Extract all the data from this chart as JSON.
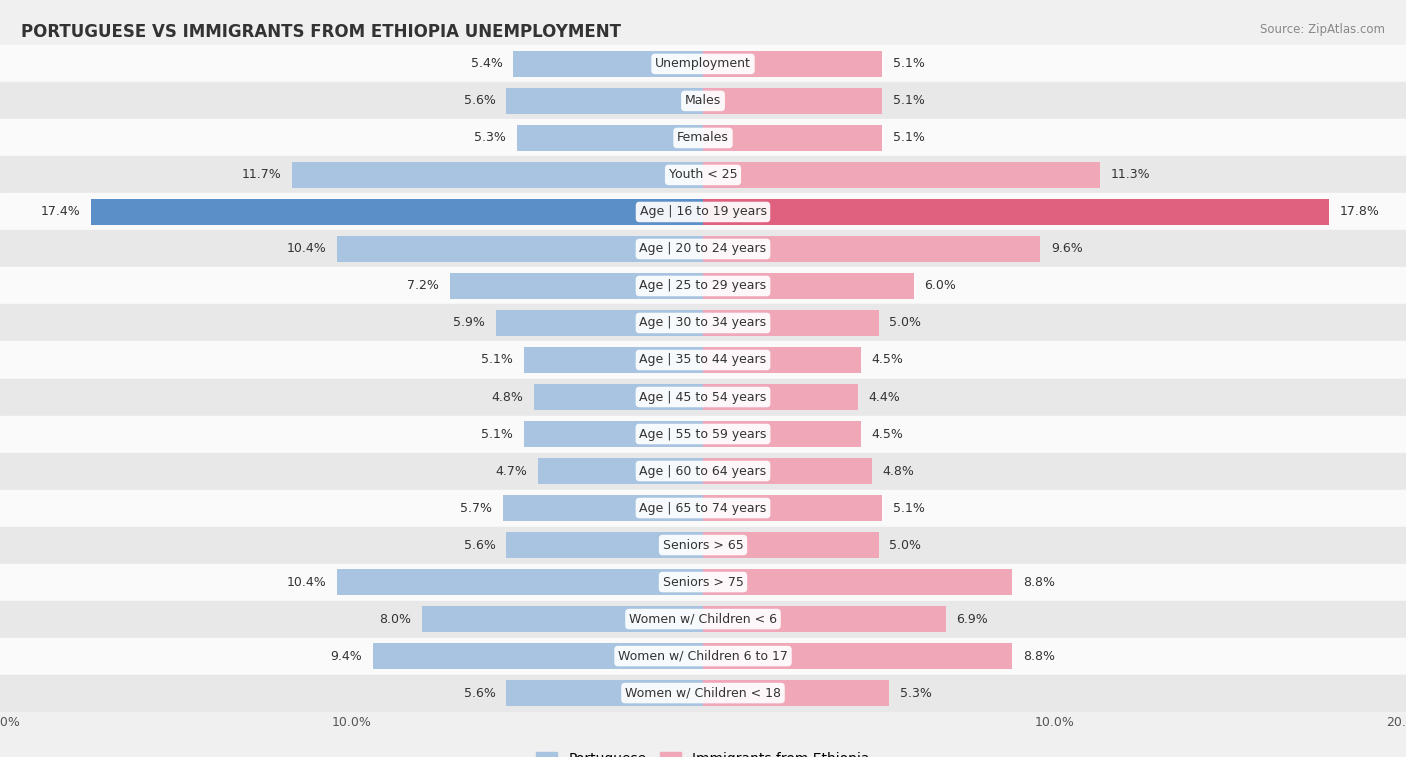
{
  "title": "PORTUGUESE VS IMMIGRANTS FROM ETHIOPIA UNEMPLOYMENT",
  "source": "Source: ZipAtlas.com",
  "categories": [
    "Unemployment",
    "Males",
    "Females",
    "Youth < 25",
    "Age | 16 to 19 years",
    "Age | 20 to 24 years",
    "Age | 25 to 29 years",
    "Age | 30 to 34 years",
    "Age | 35 to 44 years",
    "Age | 45 to 54 years",
    "Age | 55 to 59 years",
    "Age | 60 to 64 years",
    "Age | 65 to 74 years",
    "Seniors > 65",
    "Seniors > 75",
    "Women w/ Children < 6",
    "Women w/ Children 6 to 17",
    "Women w/ Children < 18"
  ],
  "portuguese": [
    5.4,
    5.6,
    5.3,
    11.7,
    17.4,
    10.4,
    7.2,
    5.9,
    5.1,
    4.8,
    5.1,
    4.7,
    5.7,
    5.6,
    10.4,
    8.0,
    9.4,
    5.6
  ],
  "ethiopia": [
    5.1,
    5.1,
    5.1,
    11.3,
    17.8,
    9.6,
    6.0,
    5.0,
    4.5,
    4.4,
    4.5,
    4.8,
    5.1,
    5.0,
    8.8,
    6.9,
    8.8,
    5.3
  ],
  "portuguese_color": "#a8c4e0",
  "ethiopia_color": "#f0a8b8",
  "portuguese_highlight": "#5b8fc7",
  "ethiopia_highlight": "#e06080",
  "axis_limit": 20.0,
  "bg_color": "#f0f0f0",
  "row_color_light": "#fafafa",
  "row_color_dark": "#e8e8e8",
  "bar_height": 0.72,
  "label_fontsize": 9.0,
  "value_fontsize": 9.0,
  "title_fontsize": 12,
  "source_fontsize": 8.5,
  "legend_fontsize": 10
}
